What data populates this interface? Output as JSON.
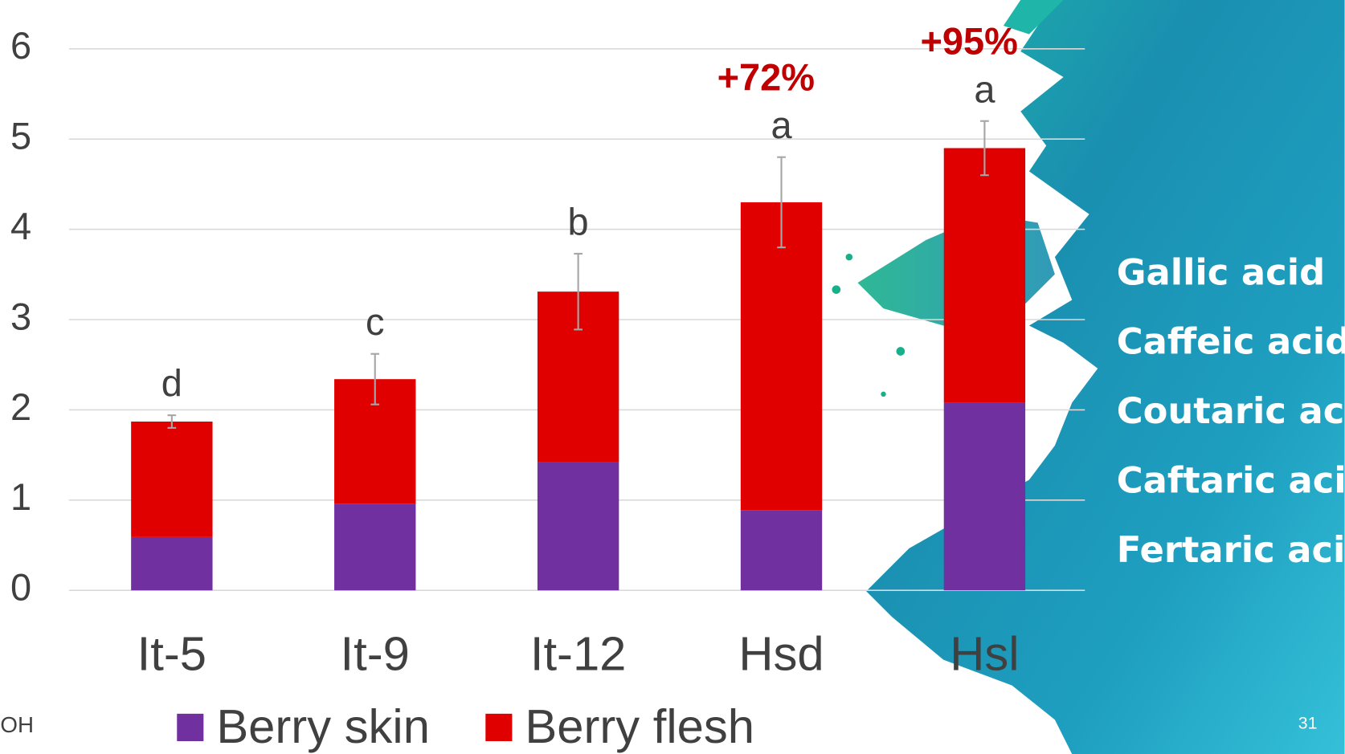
{
  "chart_data": {
    "type": "stacked_bar",
    "categories": [
      "It-5",
      "It-9",
      "It-12",
      "Hsd",
      "Hsl"
    ],
    "series": [
      {
        "name": "Berry skin",
        "color": "#7030a0",
        "values": [
          0.59,
          0.96,
          1.42,
          0.89,
          2.08
        ]
      },
      {
        "name": "Berry flesh",
        "color": "#e00000",
        "values": [
          1.28,
          1.38,
          1.89,
          3.41,
          2.82
        ]
      }
    ],
    "errors": [
      0.07,
      0.28,
      0.42,
      0.5,
      0.3
    ],
    "letters": [
      "d",
      "c",
      "b",
      "a",
      "a"
    ],
    "annotations": [
      null,
      null,
      null,
      "+72%",
      "+95%"
    ],
    "ylim": [
      0,
      6
    ],
    "yticks": [
      0,
      1,
      2,
      3,
      4,
      5,
      6
    ],
    "grid": true
  },
  "side_labels": [
    "Gallic acid",
    "Caffeic acid",
    "Coutaric acid",
    "Caftaric acid",
    "Fertaric acid"
  ],
  "footer_left": "OH",
  "slide_number": "31"
}
